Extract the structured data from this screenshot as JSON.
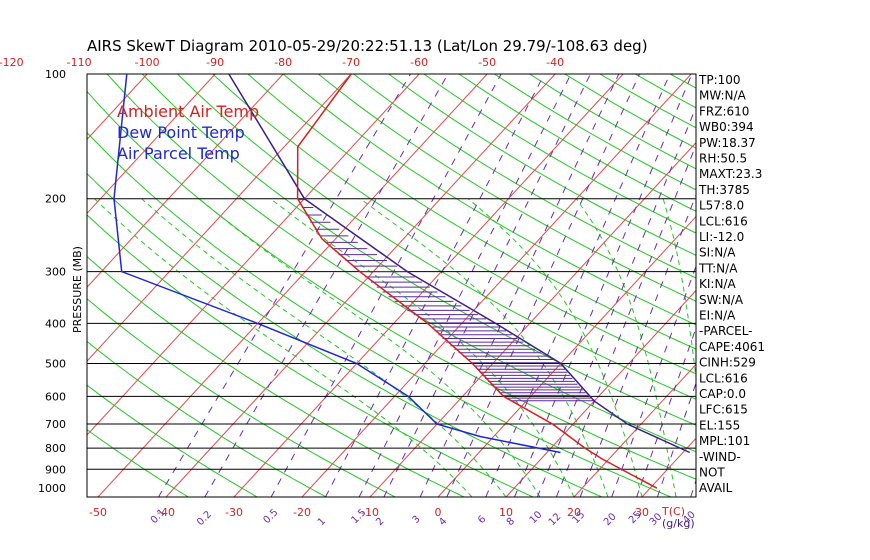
{
  "chart_data": {
    "type": "line",
    "title": "AIRS SkewT Diagram 2010-05-29/20:22:51.13 (Lat/Lon 29.79/-108.63 deg)",
    "ylabel": "PRESSURE (MB)",
    "xlabel": "T(C)",
    "mixing_ratio_unit": "(g/kg)",
    "legend": [
      {
        "label": "Ambient Air Temp",
        "color": "#d81e1e"
      },
      {
        "label": "Dew Point Temp",
        "color": "#1e28d2"
      },
      {
        "label": "Air Parcel Temp",
        "color": "#1e28d2"
      }
    ],
    "pressure_ticks": [
      "100",
      "200",
      "300",
      "400",
      "500",
      "600",
      "700",
      "800",
      "900",
      "1000"
    ],
    "top_temp_ticks": [
      -120,
      -110,
      -100,
      -90,
      -80,
      -70,
      -60,
      -50,
      -40
    ],
    "bottom_temp_ticks": [
      -50,
      -40,
      -30,
      -20,
      -10,
      0,
      10,
      20,
      30
    ],
    "mixing_ratio_ticks": [
      "0.1",
      "0.2",
      "0.5",
      "1",
      "1.5",
      "2",
      "3",
      "4",
      "6",
      "8",
      "10",
      "12",
      "15",
      "20",
      "25",
      "30",
      "40"
    ],
    "series": [
      {
        "name": "Ambient Air Temp",
        "color": "#d81e1e",
        "points": [
          {
            "p": 1000,
            "t": 31.0
          },
          {
            "p": 850,
            "t": 19.0
          },
          {
            "p": 800,
            "t": 15.0
          },
          {
            "p": 700,
            "t": 7.0
          },
          {
            "p": 600,
            "t": -4.0
          },
          {
            "p": 500,
            "t": -13.0
          },
          {
            "p": 400,
            "t": -25.0
          },
          {
            "p": 300,
            "t": -42.0
          },
          {
            "p": 250,
            "t": -52.0
          },
          {
            "p": 200,
            "t": -61.0
          },
          {
            "p": 150,
            "t": -68.0
          },
          {
            "p": 100,
            "t": -70.0
          }
        ]
      },
      {
        "name": "Dew Point Temp",
        "color": "#1e28d2",
        "points": [
          {
            "p": 820,
            "t": 12.0
          },
          {
            "p": 750,
            "t": -2.0
          },
          {
            "p": 700,
            "t": -10.0
          },
          {
            "p": 600,
            "t": -18.0
          },
          {
            "p": 500,
            "t": -30.0
          },
          {
            "p": 400,
            "t": -50.0
          },
          {
            "p": 300,
            "t": -77.0
          },
          {
            "p": 200,
            "t": -88.0
          },
          {
            "p": 100,
            "t": -103.0
          }
        ]
      },
      {
        "name": "Air Parcel Temp",
        "color": "#3a1e8a",
        "points": [
          {
            "p": 820,
            "t": 31.0
          },
          {
            "p": 700,
            "t": 18.0
          },
          {
            "p": 616,
            "t": 10.0
          },
          {
            "p": 500,
            "t": 0.0
          },
          {
            "p": 400,
            "t": -15.0
          },
          {
            "p": 300,
            "t": -35.0
          },
          {
            "p": 200,
            "t": -60.0
          },
          {
            "p": 100,
            "t": -88.0
          }
        ]
      }
    ],
    "indices": [
      "TP:100",
      "MW:N/A",
      "FRZ:610",
      "WB0:394",
      "PW:18.37",
      "RH:50.5",
      "MAXT:23.3",
      "TH:3785",
      "L57:8.0",
      "LCL:616",
      "LI:-12.0",
      "SI:N/A",
      "TT:N/A",
      "KI:N/A",
      "SW:N/A",
      "EI:N/A",
      "-PARCEL-",
      "CAPE:4061",
      "CINH:529",
      "LCL:616",
      "CAP:0.0",
      "LFC:615",
      "EL:155",
      "MPL:101",
      "-WIND-",
      "NOT",
      "AVAIL"
    ]
  }
}
